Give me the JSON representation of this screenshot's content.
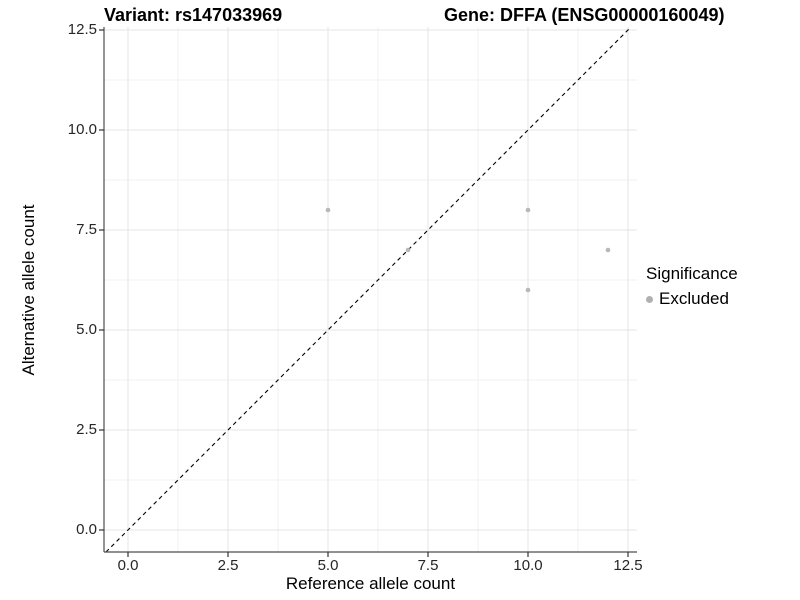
{
  "chart_data": {
    "type": "scatter",
    "title_left": "Variant: rs147033969",
    "title_right": "Gene: DFFA (ENSG00000160049)",
    "xlabel": "Reference allele count",
    "ylabel": "Alternative allele count",
    "x_ticks": [
      0.0,
      2.5,
      5.0,
      7.5,
      10.0,
      12.5
    ],
    "y_ticks": [
      0.0,
      2.5,
      5.0,
      7.5,
      10.0,
      12.5
    ],
    "minor_ticks": [
      1.25,
      3.75,
      6.25,
      8.75,
      11.25
    ],
    "xlim": [
      -0.6,
      12.725
    ],
    "ylim": [
      -0.55,
      12.575
    ],
    "grid": true,
    "series": [
      {
        "name": "Excluded",
        "color": "#b8b8b8",
        "points": [
          {
            "x": 5,
            "y": 8
          },
          {
            "x": 7,
            "y": 7
          },
          {
            "x": 10,
            "y": 8
          },
          {
            "x": 10,
            "y": 6
          },
          {
            "x": 12,
            "y": 7
          }
        ]
      }
    ],
    "reference_line": {
      "type": "identity",
      "style": "dashed",
      "color": "#000000"
    },
    "legend": {
      "title": "Significance",
      "position": "right",
      "items": [
        {
          "label": "Excluded",
          "color": "#b0b0b0",
          "shape": "circle"
        }
      ]
    },
    "style": {
      "panel_background": "#ffffff",
      "major_grid_color": "#e4e4e4",
      "minor_grid_color": "#f0f0f0",
      "axis_line_color": "#4d4d4d",
      "tick_mark_color": "#333333",
      "tick_label_color": "#262626"
    }
  }
}
